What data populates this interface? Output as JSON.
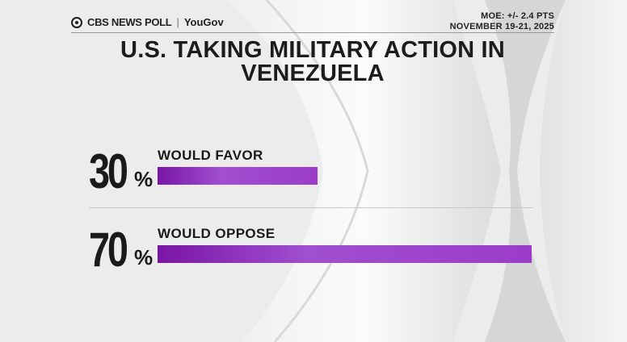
{
  "header": {
    "brand": "CBS NEWS POLL",
    "partner": "YouGov",
    "moe": "MOE: +/- 2.4 PTS",
    "dates": "NOVEMBER 19-21, 2025"
  },
  "chart_data": {
    "type": "bar",
    "orientation": "horizontal",
    "title": "U.S. TAKING MILITARY ACTION IN VENEZUELA",
    "categories": [
      "WOULD FAVOR",
      "WOULD OPPOSE"
    ],
    "values": [
      30,
      70
    ],
    "value_labels": [
      "30",
      "70"
    ],
    "unit": "%",
    "xlim": [
      0,
      70
    ],
    "grid": false,
    "legend": "none",
    "bar_color": "#8e2bbd"
  }
}
